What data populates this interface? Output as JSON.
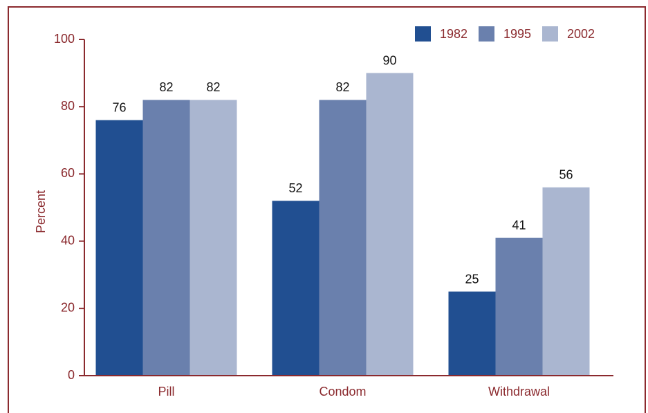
{
  "chart_data": {
    "type": "bar",
    "y_label": "Percent",
    "categories": [
      "Pill",
      "Condom",
      "Withdrawal"
    ],
    "series": [
      {
        "name": "1982",
        "color": "#214f91",
        "values": [
          76,
          52,
          25
        ]
      },
      {
        "name": "1995",
        "color": "#6a80ad",
        "values": [
          82,
          82,
          41
        ]
      },
      {
        "name": "2002",
        "color": "#aab6d0",
        "values": [
          82,
          90,
          56
        ]
      }
    ],
    "ylim": [
      0,
      100
    ],
    "yticks": [
      0,
      20,
      40,
      60,
      80,
      100
    ],
    "legend": "top-right"
  }
}
